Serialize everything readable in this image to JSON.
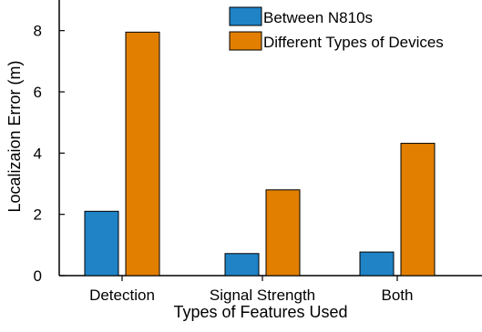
{
  "chart_data": {
    "type": "bar",
    "title": "",
    "xlabel": "Types of Features Used",
    "ylabel": "Localizaion Error (m)",
    "categories": [
      "Detection",
      "Signal Strength",
      "Both"
    ],
    "series": [
      {
        "name": "Between N810s",
        "values": [
          2.1,
          0.72,
          0.77
        ],
        "color": "#1f83c6"
      },
      {
        "name": "Different Types of Devices",
        "values": [
          7.95,
          2.8,
          4.32
        ],
        "color": "#e27f00"
      }
    ],
    "ylim": [
      0,
      9
    ],
    "yticks": [
      0,
      2,
      4,
      6,
      8
    ],
    "grid": false,
    "legend_position": "top-right"
  }
}
